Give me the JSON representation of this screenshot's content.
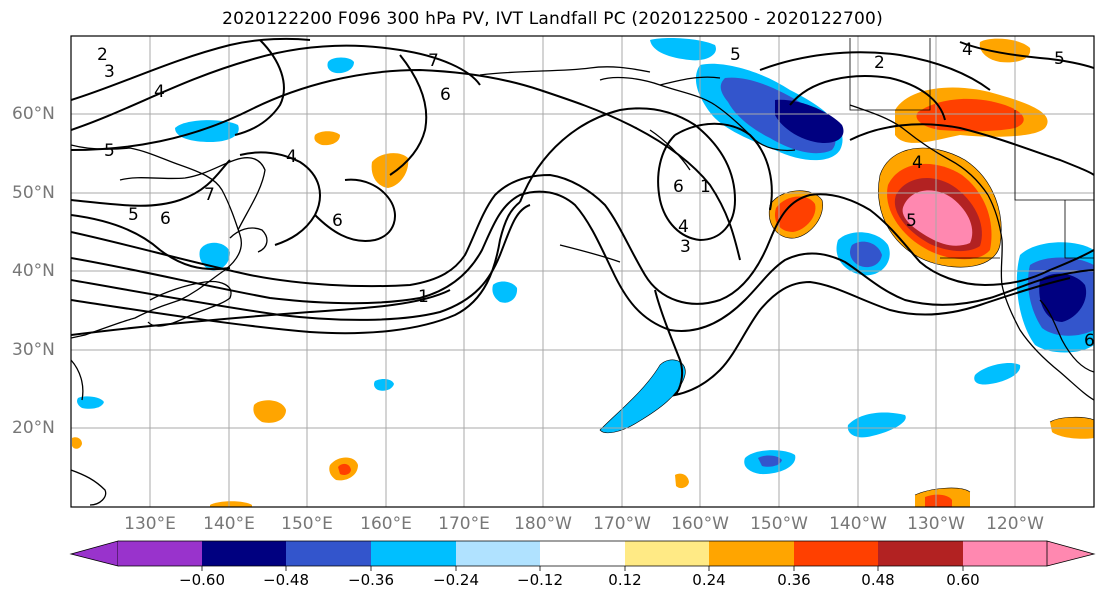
{
  "title": "2020122200 F096 300 hPa PV, IVT Landfall PC (2020122500 - 2020122700)",
  "lat_labels": [
    "60°N",
    "50°N",
    "40°N",
    "30°N",
    "20°N"
  ],
  "lon_labels": [
    "130°E",
    "140°E",
    "150°E",
    "160°E",
    "170°E",
    "180°W",
    "170°W",
    "160°W",
    "150°W",
    "140°W",
    "130°W",
    "120°W"
  ],
  "colorbar": {
    "colors": [
      "#9933cc",
      "#000080",
      "#3355cc",
      "#00bfff",
      "#b0e2ff",
      "#ffffff",
      "#ffea85",
      "#ffa500",
      "#ff4000",
      "#b22222",
      "#ff88b0"
    ],
    "tick_labels": [
      "−0.60",
      "−0.48",
      "−0.36",
      "−0.24",
      "−0.12",
      "0.12",
      "0.24",
      "0.36",
      "0.48",
      "0.60"
    ]
  },
  "contour_labels": [
    "2",
    "3",
    "4",
    "5",
    "6",
    "7",
    "1",
    "4",
    "5",
    "6",
    "7",
    "6",
    "6",
    "4",
    "3",
    "1",
    "2",
    "4",
    "5",
    "5",
    "5",
    "4",
    "6"
  ],
  "grid_color": "#a9a9a9",
  "contour_color": "#000000"
}
